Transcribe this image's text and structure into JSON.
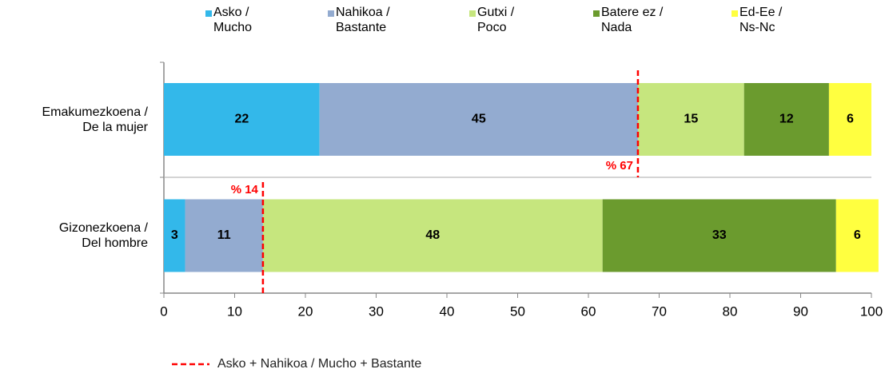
{
  "chart_data": {
    "type": "stacked_barh",
    "categories": [
      "Emakumezkoena /\nDe la mujer",
      "Gizonezkoena /\nDel hombre"
    ],
    "series": [
      {
        "name": "Asko /\nMucho",
        "color": "#33b8ea",
        "values": [
          22,
          3
        ]
      },
      {
        "name": "Nahikoa /\nBastante",
        "color": "#93abd0",
        "values": [
          45,
          11
        ]
      },
      {
        "name": "Gutxi /\nPoco",
        "color": "#c6e67e",
        "values": [
          15,
          48
        ]
      },
      {
        "name": "Batere ez /\nNada",
        "color": "#6b9b2e",
        "values": [
          12,
          33
        ]
      },
      {
        "name": "Ed-Ee /\nNs-Nc",
        "color": "#ffff40",
        "values": [
          6,
          6
        ]
      }
    ],
    "xlim": [
      0,
      100
    ],
    "xticks": [
      0,
      10,
      20,
      30,
      40,
      50,
      60,
      70,
      80,
      90,
      100
    ],
    "annotations": [
      {
        "text": "% 67",
        "x": 67,
        "category": 0
      },
      {
        "text": "% 14",
        "x": 14,
        "category": 1
      }
    ],
    "reference_line_label": "Asko + Nahikoa / Mucho + Bastante",
    "reference_line_color": "#ff0000",
    "legend": "top"
  }
}
